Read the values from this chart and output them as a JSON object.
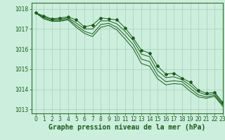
{
  "title": "Graphe pression niveau de la mer (hPa)",
  "background_color": "#cceedd",
  "grid_color": "#aaccbb",
  "line_color": "#1a5c1a",
  "xlim": [
    -0.5,
    23
  ],
  "ylim": [
    1012.8,
    1018.3
  ],
  "yticks": [
    1013,
    1014,
    1015,
    1016,
    1017,
    1018
  ],
  "xticks": [
    0,
    1,
    2,
    3,
    4,
    5,
    6,
    7,
    8,
    9,
    10,
    11,
    12,
    13,
    14,
    15,
    16,
    17,
    18,
    19,
    20,
    21,
    22,
    23
  ],
  "series": [
    [
      1017.8,
      1017.65,
      1017.5,
      1017.55,
      1017.6,
      1017.45,
      1017.1,
      1017.2,
      1017.55,
      1017.5,
      1017.45,
      1017.05,
      1016.55,
      1015.95,
      1015.8,
      1015.15,
      1014.75,
      1014.8,
      1014.55,
      1014.35,
      1013.95,
      1013.8,
      1013.85,
      1013.35
    ],
    [
      1017.8,
      1017.6,
      1017.48,
      1017.48,
      1017.55,
      1017.3,
      1017.0,
      1017.0,
      1017.4,
      1017.4,
      1017.25,
      1016.88,
      1016.42,
      1015.75,
      1015.62,
      1014.92,
      1014.58,
      1014.62,
      1014.48,
      1014.2,
      1013.85,
      1013.72,
      1013.78,
      1013.28
    ],
    [
      1017.8,
      1017.55,
      1017.42,
      1017.42,
      1017.5,
      1017.18,
      1016.88,
      1016.75,
      1017.22,
      1017.28,
      1017.08,
      1016.68,
      1016.22,
      1015.5,
      1015.38,
      1014.7,
      1014.38,
      1014.42,
      1014.38,
      1014.05,
      1013.72,
      1013.62,
      1013.7,
      1013.22
    ],
    [
      1017.8,
      1017.5,
      1017.38,
      1017.38,
      1017.45,
      1017.08,
      1016.78,
      1016.62,
      1017.08,
      1017.18,
      1016.95,
      1016.5,
      1016.02,
      1015.28,
      1015.15,
      1014.52,
      1014.22,
      1014.28,
      1014.25,
      1013.9,
      1013.62,
      1013.55,
      1013.65,
      1013.15
    ]
  ],
  "title_fontsize": 7,
  "tick_fontsize": 5.5
}
